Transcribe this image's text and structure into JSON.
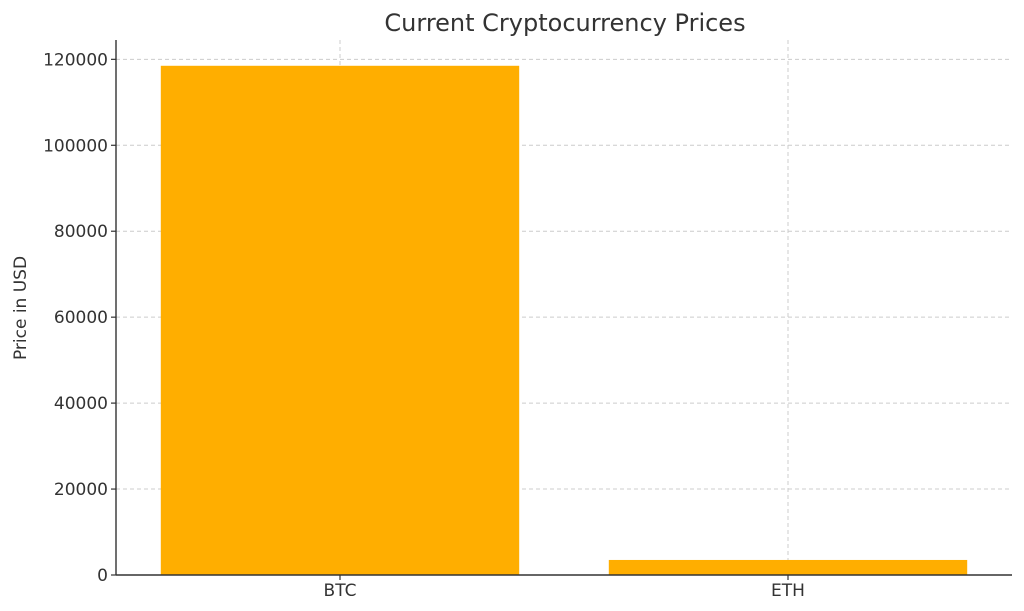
{
  "chart_data": {
    "type": "bar",
    "title": "Current Cryptocurrency Prices",
    "xlabel": "",
    "ylabel": "Price in USD",
    "categories": [
      "BTC",
      "ETH"
    ],
    "values": [
      118500,
      3500
    ],
    "ylim": [
      0,
      124500
    ],
    "yticks": [
      0,
      20000,
      40000,
      60000,
      80000,
      100000,
      120000
    ],
    "bar_color": "#FFAE00",
    "grid": true,
    "legend": "none"
  }
}
